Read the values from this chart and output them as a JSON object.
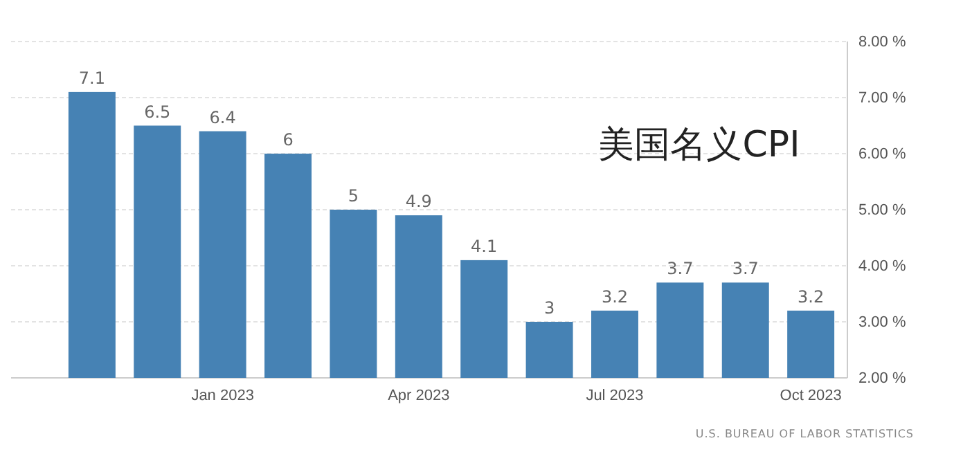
{
  "chart_data": {
    "type": "bar",
    "title": "美国名义CPI",
    "categories": [
      null,
      null,
      "Jan 2023",
      null,
      null,
      "Apr 2023",
      null,
      null,
      "Jul 2023",
      null,
      null,
      "Oct 2023"
    ],
    "values": [
      7.1,
      6.5,
      6.4,
      6,
      5,
      4.9,
      4.1,
      3,
      3.2,
      3.7,
      3.7,
      3.2
    ],
    "color": "#4682b4",
    "ylim": [
      2,
      8
    ],
    "yticks": [
      {
        "value": 2,
        "label": "2.00 %"
      },
      {
        "value": 3,
        "label": "3.00 %"
      },
      {
        "value": 4,
        "label": "4.00 %"
      },
      {
        "value": 5,
        "label": "5.00 %"
      },
      {
        "value": 6,
        "label": "6.00 %"
      },
      {
        "value": 7,
        "label": "7.00 %"
      },
      {
        "value": 8,
        "label": "8.00 %"
      }
    ],
    "grid": "y",
    "data_labels": true,
    "annotations": [
      "U.S. BUREAU OF LABOR STATISTICS"
    ]
  }
}
